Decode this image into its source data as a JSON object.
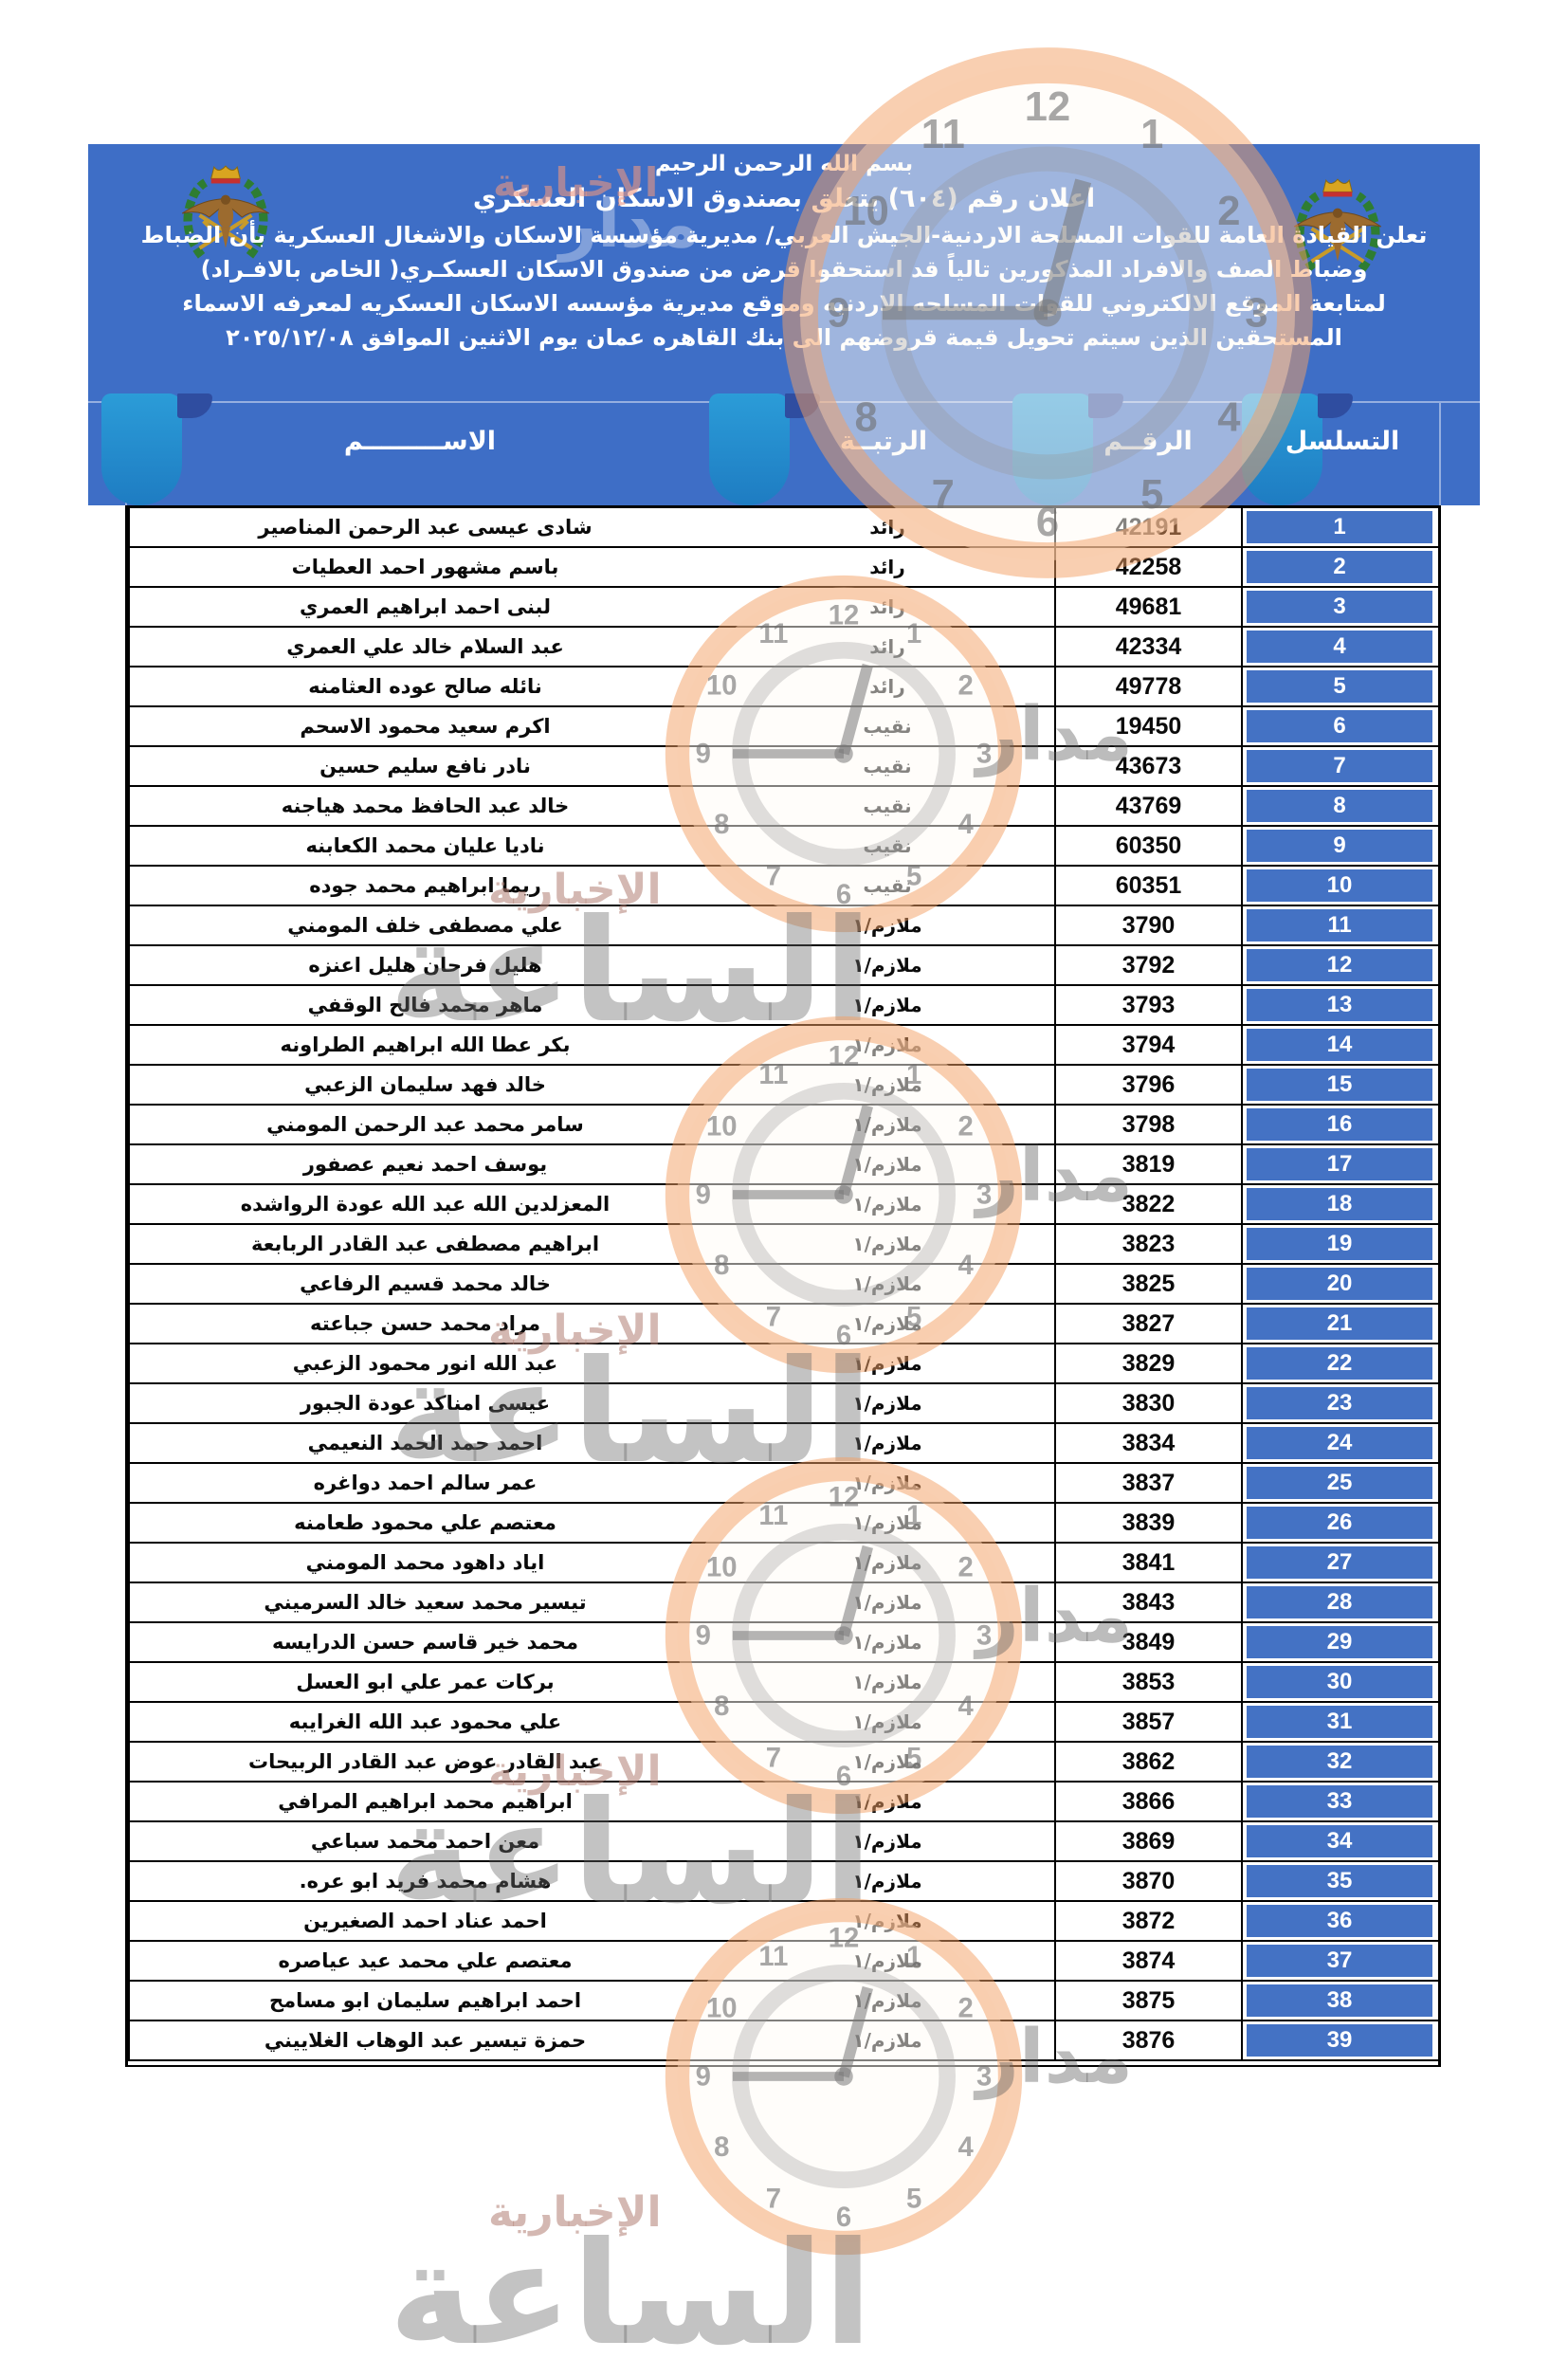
{
  "header": {
    "line1": "بسم الله الرحمن الرحيم",
    "line2": "اعلان رقم (٦٠٤) يتعلق بصندوق الاسكان العسكري",
    "line3": "تعلن القيادة العامة للقوات المسلحة الاردنية-الجيش العربي/ مديرية مؤسسة الاسكان والاشغال العسكرية بأن الضباط",
    "line4": "وضباط الصف والافراد المذكورين تالياً قد استحقوا قرض من صندوق الاسكان العسكـري( الخاص بالافـراد)",
    "line5": "لمتابعة الموقع الالكتروني للقوات  المسلحه الاردنيه وموقع مديرية مؤسسه الاسكان العسكريه لمعرفه الاسماء",
    "line6": "المستحقين الذين سيتم تحويل قيمة قروضهم الى بنك القاهره عمان يوم الاثنين الموافق ٢٠٢٥/١٢/٠٨"
  },
  "table": {
    "headers": {
      "serial": "التسلسل",
      "number": "الرقــم",
      "rank": "الرتبــة",
      "name": "الاســـــــــم"
    },
    "rows": [
      {
        "serial": "1",
        "number": "42191",
        "rank": "رائد",
        "name": "شادى عيسى عبد الرحمن المناصير"
      },
      {
        "serial": "2",
        "number": "42258",
        "rank": "رائد",
        "name": "باسم مشهور احمد العطيات"
      },
      {
        "serial": "3",
        "number": "49681",
        "rank": "رائد",
        "name": "لبنى احمد ابراهيم العمري"
      },
      {
        "serial": "4",
        "number": "42334",
        "rank": "رائد",
        "name": "عبد السلام خالد علي العمري"
      },
      {
        "serial": "5",
        "number": "49778",
        "rank": "رائد",
        "name": "نائله صالح عوده العثامنه"
      },
      {
        "serial": "6",
        "number": "19450",
        "rank": "نقيب",
        "name": "اكرم سعيد محمود الاسحم"
      },
      {
        "serial": "7",
        "number": "43673",
        "rank": "نقيب",
        "name": "نادر نافع سليم حسين"
      },
      {
        "serial": "8",
        "number": "43769",
        "rank": "نقيب",
        "name": "خالد عبد الحافظ محمد هياجنه"
      },
      {
        "serial": "9",
        "number": "60350",
        "rank": "نقيب",
        "name": "ناديا عليان محمد الكعابنه"
      },
      {
        "serial": "10",
        "number": "60351",
        "rank": "نقيب",
        "name": "ريما ابراهيم محمد جوده"
      },
      {
        "serial": "11",
        "number": "3790",
        "rank": "ملازم/١",
        "name": "علي مصطفى خلف المومني"
      },
      {
        "serial": "12",
        "number": "3792",
        "rank": "ملازم/١",
        "name": "هليل فرحان هليل اعنزه"
      },
      {
        "serial": "13",
        "number": "3793",
        "rank": "ملازم/١",
        "name": "ماهر محمد فالح الوقفي"
      },
      {
        "serial": "14",
        "number": "3794",
        "rank": "ملازم/١",
        "name": "بكر عطا الله ابراهيم الطراونه"
      },
      {
        "serial": "15",
        "number": "3796",
        "rank": "ملازم/١",
        "name": "خالد فهد سليمان الزعبي"
      },
      {
        "serial": "16",
        "number": "3798",
        "rank": "ملازم/١",
        "name": "سامر محمد عبد الرحمن المومني"
      },
      {
        "serial": "17",
        "number": "3819",
        "rank": "ملازم/١",
        "name": "يوسف احمد نعيم عصفور"
      },
      {
        "serial": "18",
        "number": "3822",
        "rank": "ملازم/١",
        "name": "المعزلدين الله عبد الله عودة الرواشده"
      },
      {
        "serial": "19",
        "number": "3823",
        "rank": "ملازم/١",
        "name": "ابراهيم مصطفى عبد القادر الربابعة"
      },
      {
        "serial": "20",
        "number": "3825",
        "rank": "ملازم/١",
        "name": "خالد محمد قسيم الرفاعي"
      },
      {
        "serial": "21",
        "number": "3827",
        "rank": "ملازم/١",
        "name": "مراد محمد حسن جباعته"
      },
      {
        "serial": "22",
        "number": "3829",
        "rank": "ملازم/١",
        "name": "عبد الله انور محمود الزعبي"
      },
      {
        "serial": "23",
        "number": "3830",
        "rank": "ملازم/١",
        "name": "عيسى امناكد عودة الجبور"
      },
      {
        "serial": "24",
        "number": "3834",
        "rank": "ملازم/١",
        "name": "احمد حمد الحمد النعيمي"
      },
      {
        "serial": "25",
        "number": "3837",
        "rank": "ملازم/١",
        "name": "عمر سالم احمد  دواغره"
      },
      {
        "serial": "26",
        "number": "3839",
        "rank": "ملازم/١",
        "name": "معتصم علي محمود طعامنه"
      },
      {
        "serial": "27",
        "number": "3841",
        "rank": "ملازم/١",
        "name": "اياد داهود محمد المومني"
      },
      {
        "serial": "28",
        "number": "3843",
        "rank": "ملازم/١",
        "name": "تيسير محمد سعيد  خالد السرميني"
      },
      {
        "serial": "29",
        "number": "3849",
        "rank": "ملازم/١",
        "name": "محمد خير قاسم حسن الدرايسه"
      },
      {
        "serial": "30",
        "number": "3853",
        "rank": "ملازم/١",
        "name": "بركات عمر علي ابو العسل"
      },
      {
        "serial": "31",
        "number": "3857",
        "rank": "ملازم/١",
        "name": "علي محمود عبد الله الغرايبه"
      },
      {
        "serial": "32",
        "number": "3862",
        "rank": "ملازم/١",
        "name": "عبد القادر عوض  عبد القادر الربيحات"
      },
      {
        "serial": "33",
        "number": "3866",
        "rank": "ملازم/١",
        "name": "ابراهيم محمد ابراهيم المرافي"
      },
      {
        "serial": "34",
        "number": "3869",
        "rank": "ملازم/١",
        "name": "معن احمد محمد سباعي"
      },
      {
        "serial": "35",
        "number": "3870",
        "rank": "ملازم/١",
        "name": "هشام محمد فريد ابو عره."
      },
      {
        "serial": "36",
        "number": "3872",
        "rank": "ملازم/١",
        "name": "احمد عناد احمد الصغيرين"
      },
      {
        "serial": "37",
        "number": "3874",
        "rank": "ملازم/١",
        "name": "معتصم علي محمد عيد عياصره"
      },
      {
        "serial": "38",
        "number": "3875",
        "rank": "ملازم/١",
        "name": "احمد ابراهيم سليمان ابو مسامح"
      },
      {
        "serial": "39",
        "number": "3876",
        "rank": "ملازم/١",
        "name": "حمزة تيسير عبد الوهاب الغلاييني"
      }
    ]
  },
  "watermark": {
    "brand_word1": "مدار",
    "brand_word2": "الساعة",
    "brand_sub": "الإخبارية",
    "dial": [
      "12",
      "1",
      "2",
      "3",
      "4",
      "5",
      "6",
      "7",
      "8",
      "9",
      "10",
      "11"
    ]
  },
  "colors": {
    "band_blue": "#3E6EC6",
    "cell_blue": "#4472C4",
    "ribbon_light": "#2B9CD8",
    "ribbon_dark": "#2F4DA0",
    "wm_orange": "#F3A064"
  }
}
